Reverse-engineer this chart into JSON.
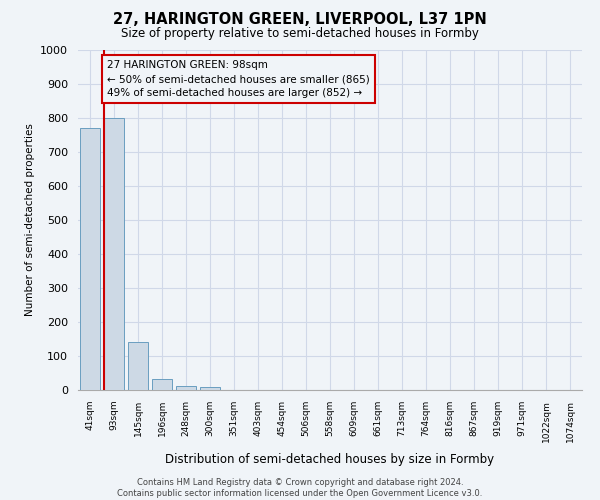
{
  "title": "27, HARINGTON GREEN, LIVERPOOL, L37 1PN",
  "subtitle": "Size of property relative to semi-detached houses in Formby",
  "xlabel": "Distribution of semi-detached houses by size in Formby",
  "ylabel": "Number of semi-detached properties",
  "footer_line1": "Contains HM Land Registry data © Crown copyright and database right 2024.",
  "footer_line2": "Contains public sector information licensed under the Open Government Licence v3.0.",
  "categories": [
    "41sqm",
    "93sqm",
    "145sqm",
    "196sqm",
    "248sqm",
    "300sqm",
    "351sqm",
    "403sqm",
    "454sqm",
    "506sqm",
    "558sqm",
    "609sqm",
    "661sqm",
    "713sqm",
    "764sqm",
    "816sqm",
    "867sqm",
    "919sqm",
    "971sqm",
    "1022sqm",
    "1074sqm"
  ],
  "bar_values": [
    770,
    800,
    140,
    33,
    12,
    8,
    0,
    0,
    0,
    0,
    0,
    0,
    0,
    0,
    0,
    0,
    0,
    0,
    0,
    0,
    0
  ],
  "bar_color": "#cdd9e5",
  "bar_edge_color": "#6a9ec0",
  "red_line_color": "#cc0000",
  "annotation_text": "27 HARINGTON GREEN: 98sqm\n← 50% of semi-detached houses are smaller (865)\n49% of semi-detached houses are larger (852) →",
  "annotation_box_edge_color": "#cc0000",
  "property_bin_index": 1,
  "ylim": [
    0,
    1000
  ],
  "yticks": [
    0,
    100,
    200,
    300,
    400,
    500,
    600,
    700,
    800,
    900,
    1000
  ],
  "grid_color": "#d0d8e8",
  "background_color": "#f0f4f8"
}
